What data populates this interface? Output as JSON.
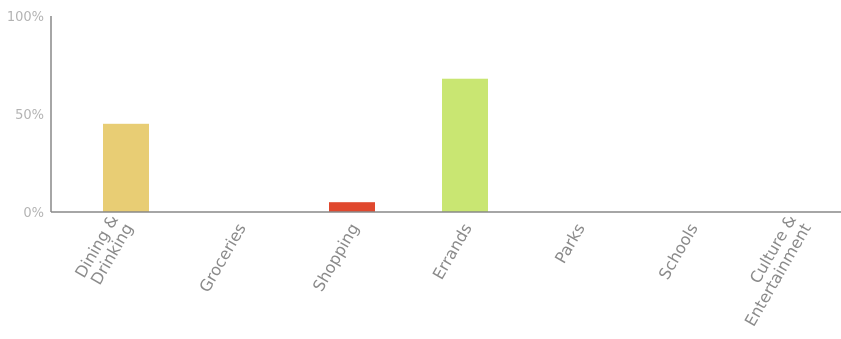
{
  "chart_data": {
    "type": "bar",
    "categories": [
      [
        "Dining &",
        "Drinking"
      ],
      [
        "Groceries"
      ],
      [
        "Shopping"
      ],
      [
        "Errands"
      ],
      [
        "Parks"
      ],
      [
        "Schools"
      ],
      [
        "Culture &",
        "Entertainment"
      ]
    ],
    "values": [
      45,
      0,
      5,
      68,
      0,
      0,
      0
    ],
    "bar_colors": [
      "#e8cd74",
      "#e8cd74",
      "#e0482e",
      "#c9e672",
      "#c9e672",
      "#c9e672",
      "#c9e672"
    ],
    "ylim": [
      0,
      100
    ],
    "yticks": [
      "100%",
      "50%",
      "0%"
    ],
    "ytick_values": [
      100,
      50,
      0
    ],
    "grid": false,
    "title": "",
    "xlabel": "",
    "ylabel": ""
  }
}
